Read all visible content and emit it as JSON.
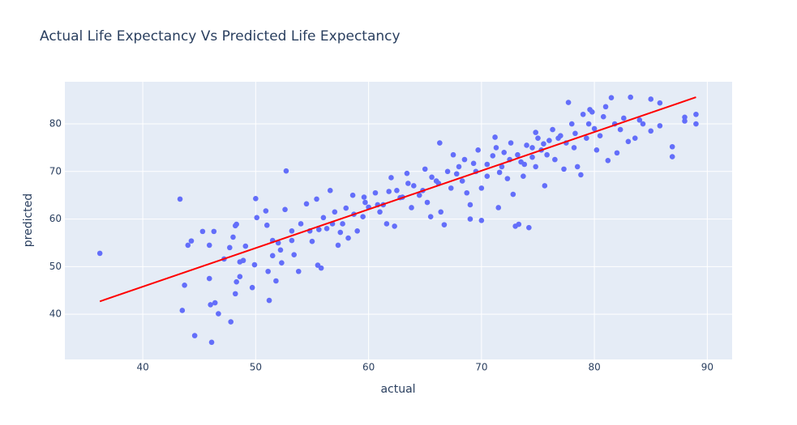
{
  "chart_data": {
    "type": "scatter",
    "title": "Actual Life Expectancy  Vs  Predicted Life Expectancy",
    "x_label": "actual",
    "y_label": "predicted",
    "xlim": [
      33.1,
      92.2
    ],
    "ylim": [
      30.5,
      88.85
    ],
    "xticks": [
      40,
      50,
      60,
      70,
      80,
      90
    ],
    "yticks": [
      40,
      50,
      60,
      70,
      80
    ],
    "grid": true,
    "background": "#e5ecf6",
    "series": [
      {
        "mode": "markers",
        "color": "#636efa",
        "x": [
          36.2,
          43.3,
          43.5,
          43.7,
          44,
          44.3,
          44.6,
          45.3,
          45.9,
          45.9,
          46,
          46.1,
          46.3,
          46.4,
          46.7,
          47.2,
          47.8,
          47.7,
          48,
          48.2,
          48.3,
          48.2,
          48.3,
          48.6,
          48.6,
          48.9,
          49.1,
          49.7,
          49.9,
          50,
          50.1,
          50.9,
          51,
          51.2,
          51.1,
          51.5,
          51.8,
          52,
          52.3,
          52.7,
          52.6,
          53.2,
          53.4,
          53.8,
          54,
          54.5,
          55,
          55.4,
          55.5,
          55.8,
          56,
          56.3,
          56.6,
          57,
          57.3,
          57.7,
          58,
          58.2,
          58.6,
          59,
          59.5,
          59.6,
          60,
          60.6,
          61,
          61.3,
          61.6,
          62,
          62.3,
          62.5,
          63,
          63.4,
          63.8,
          64,
          64.5,
          65,
          65.2,
          65.5,
          66,
          66.3,
          66.4,
          66.7,
          67,
          67.3,
          67.5,
          68,
          68.3,
          68.7,
          69,
          69,
          69.3,
          69.7,
          70,
          70,
          70.5,
          71,
          71.2,
          71.5,
          71.6,
          72,
          72.3,
          72.6,
          72.8,
          73,
          73.3,
          73.5,
          73.7,
          74,
          74.2,
          74.5,
          74.8,
          75,
          75.3,
          75.6,
          76,
          76.3,
          76.5,
          77,
          77.3,
          77.7,
          78,
          78.2,
          78.5,
          78.8,
          79,
          79.3,
          79.6,
          80,
          80.2,
          80.5,
          81,
          81.2,
          81.5,
          81.8,
          82,
          82.3,
          82.6,
          83,
          83.2,
          83.6,
          84,
          84.3,
          85,
          85,
          85.8,
          85.8,
          86.9,
          86.9,
          88,
          88,
          89,
          89,
          70.5,
          71.8,
          72.5,
          73.2,
          74.5,
          75.5,
          76.8,
          78.3,
          79.5,
          80.8,
          73.8,
          75.8,
          77.5,
          67.8,
          66.2,
          64.8,
          62.8,
          60.8,
          58.7,
          56.8,
          54.8,
          53.2,
          52.2,
          51.5,
          55.6,
          57.5,
          59.7,
          61.8,
          63.5,
          65.6,
          68.5,
          69.5,
          71.3,
          74.8,
          79.8
        ],
        "values": [
          52.8,
          64.2,
          40.8,
          46.1,
          54.5,
          55.4,
          35.5,
          57.4,
          47.5,
          54.5,
          42,
          34.1,
          57.4,
          42.4,
          40.1,
          51.6,
          38.4,
          54,
          56.2,
          58.6,
          58.9,
          44.3,
          46.8,
          47.9,
          51,
          51.3,
          54.3,
          45.6,
          50.4,
          64.3,
          60.3,
          61.7,
          58.7,
          42.9,
          49,
          52.3,
          47,
          55,
          50.8,
          70.1,
          62,
          57.5,
          52.5,
          49,
          59,
          63.2,
          55.3,
          64.2,
          50.3,
          49.7,
          60.3,
          58,
          66,
          61.5,
          54.5,
          59,
          62.3,
          56,
          65,
          57.5,
          60.5,
          64.6,
          62.5,
          65.5,
          61.5,
          63,
          59,
          68.7,
          58.5,
          66,
          64.6,
          69.6,
          62.4,
          67,
          65,
          70.5,
          63.5,
          60.5,
          68,
          76,
          61.5,
          58.8,
          70,
          66.5,
          73.5,
          71,
          68,
          65.5,
          63,
          60,
          71.7,
          74.5,
          66.5,
          59.7,
          71.5,
          73.3,
          77.2,
          62.4,
          69.8,
          74,
          68.5,
          76,
          65.2,
          58.5,
          58.9,
          72,
          69,
          75.5,
          58.2,
          73,
          71,
          77,
          74.5,
          67,
          76.5,
          78.8,
          72.5,
          77.5,
          70.5,
          84.5,
          80,
          75,
          71,
          69.3,
          82,
          77,
          83,
          79,
          74.5,
          77.5,
          83.6,
          72.3,
          85.5,
          80,
          73.9,
          78.8,
          81.2,
          76.3,
          85.6,
          77,
          80.8,
          80,
          85.2,
          78.5,
          84.4,
          79.6,
          75.2,
          73.1,
          81.4,
          80.6,
          82,
          80,
          69,
          71,
          72.5,
          73.5,
          75,
          75.8,
          77,
          78,
          80,
          81.5,
          71.5,
          73.5,
          76,
          69.5,
          67.5,
          66,
          64.5,
          63,
          61,
          59,
          57.5,
          55.5,
          53.5,
          55.5,
          57.8,
          57.2,
          63.5,
          65.8,
          67.5,
          68.8,
          72.5,
          70,
          75,
          78.2,
          82.5
        ]
      },
      {
        "mode": "lines",
        "color": "#ff0000",
        "x": [
          36.2,
          89
        ],
        "values": [
          42.7,
          85.6
        ]
      }
    ]
  }
}
